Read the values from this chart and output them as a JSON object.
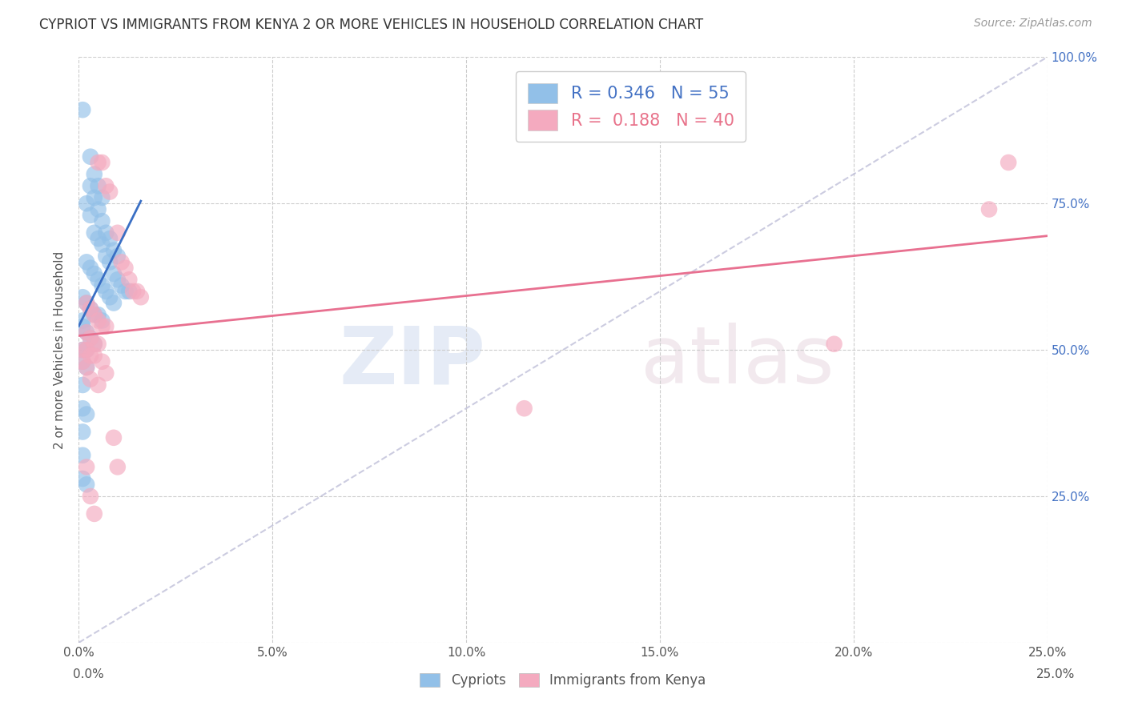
{
  "title": "CYPRIOT VS IMMIGRANTS FROM KENYA 2 OR MORE VEHICLES IN HOUSEHOLD CORRELATION CHART",
  "source": "Source: ZipAtlas.com",
  "ylabel": "2 or more Vehicles in Household",
  "legend_entry1_label": "Cypriots",
  "legend_entry2_label": "Immigrants from Kenya",
  "R1": 0.346,
  "N1": 55,
  "R2": 0.188,
  "N2": 40,
  "color_blue": "#92C0E8",
  "color_pink": "#F4AABF",
  "color_blue_line": "#3A6FC4",
  "color_pink_line": "#E87090",
  "color_blue_text": "#4472C4",
  "color_pink_text": "#E8728A",
  "watermark_zip": "ZIP",
  "watermark_atlas": "atlas",
  "blue_dots": [
    [
      0.001,
      0.91
    ],
    [
      0.003,
      0.83
    ],
    [
      0.004,
      0.8
    ],
    [
      0.003,
      0.78
    ],
    [
      0.005,
      0.78
    ],
    [
      0.004,
      0.76
    ],
    [
      0.006,
      0.76
    ],
    [
      0.002,
      0.75
    ],
    [
      0.005,
      0.74
    ],
    [
      0.003,
      0.73
    ],
    [
      0.006,
      0.72
    ],
    [
      0.004,
      0.7
    ],
    [
      0.007,
      0.7
    ],
    [
      0.005,
      0.69
    ],
    [
      0.008,
      0.69
    ],
    [
      0.006,
      0.68
    ],
    [
      0.009,
      0.67
    ],
    [
      0.007,
      0.66
    ],
    [
      0.01,
      0.66
    ],
    [
      0.002,
      0.65
    ],
    [
      0.008,
      0.65
    ],
    [
      0.003,
      0.64
    ],
    [
      0.009,
      0.63
    ],
    [
      0.004,
      0.63
    ],
    [
      0.01,
      0.62
    ],
    [
      0.005,
      0.62
    ],
    [
      0.011,
      0.61
    ],
    [
      0.006,
      0.61
    ],
    [
      0.012,
      0.6
    ],
    [
      0.007,
      0.6
    ],
    [
      0.013,
      0.6
    ],
    [
      0.001,
      0.59
    ],
    [
      0.008,
      0.59
    ],
    [
      0.002,
      0.58
    ],
    [
      0.009,
      0.58
    ],
    [
      0.003,
      0.57
    ],
    [
      0.004,
      0.56
    ],
    [
      0.005,
      0.56
    ],
    [
      0.006,
      0.55
    ],
    [
      0.001,
      0.54
    ],
    [
      0.002,
      0.53
    ],
    [
      0.003,
      0.52
    ],
    [
      0.004,
      0.51
    ],
    [
      0.001,
      0.5
    ],
    [
      0.002,
      0.5
    ],
    [
      0.001,
      0.48
    ],
    [
      0.002,
      0.47
    ],
    [
      0.001,
      0.44
    ],
    [
      0.001,
      0.4
    ],
    [
      0.002,
      0.39
    ],
    [
      0.001,
      0.36
    ],
    [
      0.001,
      0.32
    ],
    [
      0.001,
      0.28
    ],
    [
      0.002,
      0.27
    ],
    [
      0.001,
      0.55
    ]
  ],
  "pink_dots": [
    [
      0.005,
      0.82
    ],
    [
      0.006,
      0.82
    ],
    [
      0.007,
      0.78
    ],
    [
      0.008,
      0.77
    ],
    [
      0.01,
      0.7
    ],
    [
      0.011,
      0.65
    ],
    [
      0.012,
      0.64
    ],
    [
      0.013,
      0.62
    ],
    [
      0.014,
      0.6
    ],
    [
      0.015,
      0.6
    ],
    [
      0.016,
      0.59
    ],
    [
      0.002,
      0.58
    ],
    [
      0.003,
      0.57
    ],
    [
      0.004,
      0.56
    ],
    [
      0.005,
      0.55
    ],
    [
      0.006,
      0.54
    ],
    [
      0.007,
      0.54
    ],
    [
      0.002,
      0.53
    ],
    [
      0.003,
      0.52
    ],
    [
      0.004,
      0.51
    ],
    [
      0.005,
      0.51
    ],
    [
      0.001,
      0.5
    ],
    [
      0.002,
      0.5
    ],
    [
      0.003,
      0.49
    ],
    [
      0.004,
      0.49
    ],
    [
      0.001,
      0.48
    ],
    [
      0.006,
      0.48
    ],
    [
      0.002,
      0.47
    ],
    [
      0.007,
      0.46
    ],
    [
      0.003,
      0.45
    ],
    [
      0.005,
      0.44
    ],
    [
      0.002,
      0.3
    ],
    [
      0.009,
      0.35
    ],
    [
      0.01,
      0.3
    ],
    [
      0.003,
      0.25
    ],
    [
      0.004,
      0.22
    ],
    [
      0.24,
      0.82
    ],
    [
      0.235,
      0.74
    ],
    [
      0.195,
      0.51
    ],
    [
      0.115,
      0.4
    ]
  ],
  "xlim": [
    0.0,
    0.25
  ],
  "ylim": [
    0.0,
    1.0
  ],
  "xticks": [
    0.0,
    0.05,
    0.1,
    0.15,
    0.2,
    0.25
  ],
  "yticks": [
    0.0,
    0.25,
    0.5,
    0.75,
    1.0
  ],
  "xticklabels": [
    "0.0%",
    "5.0%",
    "10.0%",
    "15.0%",
    "20.0%",
    "25.0%"
  ],
  "yticklabels_right": [
    "",
    "25.0%",
    "50.0%",
    "75.0%",
    "100.0%"
  ],
  "grid_color": "#CCCCCC",
  "background_color": "#FFFFFF"
}
